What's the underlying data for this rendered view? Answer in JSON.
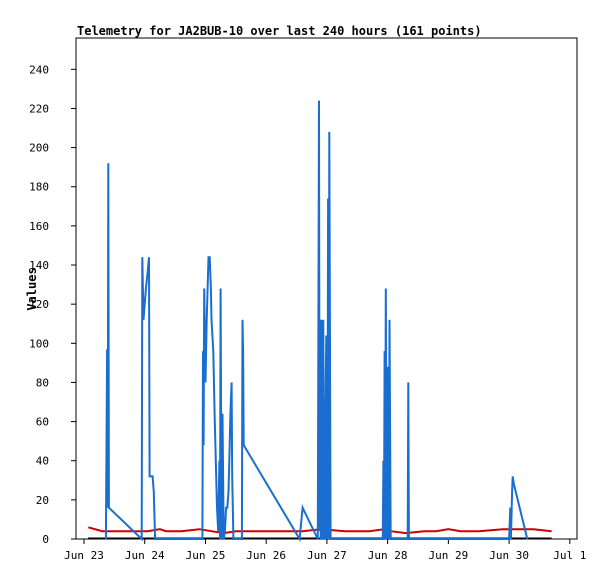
{
  "chart_data": {
    "type": "line",
    "title": "Telemetry for JA2BUB-10 over last 240 hours (161 points)",
    "ylabel": "Values",
    "xlabel": "",
    "ylim": [
      0,
      256
    ],
    "xlim": [
      0,
      8.25
    ],
    "x_unit": "days since Jun 23 00:00",
    "yticks": [
      0,
      20,
      40,
      60,
      80,
      100,
      120,
      140,
      160,
      180,
      200,
      220,
      240
    ],
    "xticks": [
      {
        "x": 0,
        "label": "Jun 23"
      },
      {
        "x": 1,
        "label": "Jun 24"
      },
      {
        "x": 2,
        "label": "Jun 25"
      },
      {
        "x": 3,
        "label": "Jun 26"
      },
      {
        "x": 4,
        "label": "Jun 27"
      },
      {
        "x": 5,
        "label": "Jun 28"
      },
      {
        "x": 6,
        "label": "Jun 29"
      },
      {
        "x": 7,
        "label": "Jun 30"
      },
      {
        "x": 8,
        "label": "Jul 1"
      }
    ],
    "series": [
      {
        "name": "",
        "color": "#cc0000",
        "points": [
          [
            0.07,
            6
          ],
          [
            0.3,
            4
          ],
          [
            0.6,
            4
          ],
          [
            1.05,
            4
          ],
          [
            1.25,
            5
          ],
          [
            1.35,
            4
          ],
          [
            1.6,
            4
          ],
          [
            1.9,
            5
          ],
          [
            2.1,
            4
          ],
          [
            2.3,
            3
          ],
          [
            2.5,
            4
          ],
          [
            3.0,
            4
          ],
          [
            3.6,
            4
          ],
          [
            3.9,
            5
          ],
          [
            4.3,
            4
          ],
          [
            4.7,
            4
          ],
          [
            4.95,
            5
          ],
          [
            5.05,
            4
          ],
          [
            5.3,
            3
          ],
          [
            5.6,
            4
          ],
          [
            5.8,
            4
          ],
          [
            6.0,
            5
          ],
          [
            6.2,
            4
          ],
          [
            6.5,
            4
          ],
          [
            6.9,
            5
          ],
          [
            7.2,
            5
          ],
          [
            7.4,
            5
          ],
          [
            7.7,
            4
          ]
        ]
      },
      {
        "name": "",
        "color": "#1a6ecf",
        "points": [
          [
            0.36,
            0
          ],
          [
            0.38,
            97
          ],
          [
            0.39,
            16
          ],
          [
            0.4,
            192
          ],
          [
            0.41,
            16
          ],
          [
            0.95,
            0
          ],
          [
            0.96,
            144
          ],
          [
            0.98,
            112
          ],
          [
            1.02,
            128
          ],
          [
            1.05,
            137
          ],
          [
            1.07,
            144
          ],
          [
            1.08,
            32
          ],
          [
            1.13,
            32
          ],
          [
            1.15,
            24
          ],
          [
            1.17,
            0
          ],
          [
            1.95,
            0
          ],
          [
            1.96,
            96
          ],
          [
            1.97,
            48
          ],
          [
            1.98,
            128
          ],
          [
            2.0,
            80
          ],
          [
            2.02,
            112
          ],
          [
            2.05,
            144
          ],
          [
            2.07,
            144
          ],
          [
            2.09,
            128
          ],
          [
            2.1,
            112
          ],
          [
            2.13,
            96
          ],
          [
            2.15,
            64
          ],
          [
            2.17,
            40
          ],
          [
            2.19,
            16
          ],
          [
            2.21,
            4
          ],
          [
            2.23,
            40
          ],
          [
            2.24,
            0
          ],
          [
            2.25,
            128
          ],
          [
            2.26,
            48
          ],
          [
            2.27,
            0
          ],
          [
            2.28,
            64
          ],
          [
            2.3,
            0
          ],
          [
            2.32,
            4
          ],
          [
            2.34,
            16
          ],
          [
            2.36,
            16
          ],
          [
            2.38,
            24
          ],
          [
            2.4,
            48
          ],
          [
            2.41,
            64
          ],
          [
            2.43,
            80
          ],
          [
            2.44,
            32
          ],
          [
            2.46,
            0
          ],
          [
            2.6,
            0
          ],
          [
            2.61,
            112
          ],
          [
            2.62,
            96
          ],
          [
            2.63,
            48
          ],
          [
            3.55,
            0
          ],
          [
            3.6,
            16
          ],
          [
            3.85,
            0
          ],
          [
            3.87,
            224
          ],
          [
            3.88,
            4
          ],
          [
            3.89,
            112
          ],
          [
            3.9,
            0
          ],
          [
            3.91,
            96
          ],
          [
            3.92,
            112
          ],
          [
            3.93,
            0
          ],
          [
            3.94,
            112
          ],
          [
            3.95,
            0
          ],
          [
            3.96,
            72
          ],
          [
            3.97,
            0
          ],
          [
            3.98,
            80
          ],
          [
            3.99,
            104
          ],
          [
            4.0,
            0
          ],
          [
            4.01,
            32
          ],
          [
            4.02,
            174
          ],
          [
            4.03,
            0
          ],
          [
            4.04,
            208
          ],
          [
            4.05,
            112
          ],
          [
            4.06,
            0
          ],
          [
            4.92,
            0
          ],
          [
            4.93,
            40
          ],
          [
            4.94,
            0
          ],
          [
            4.95,
            96
          ],
          [
            4.96,
            0
          ],
          [
            4.97,
            128
          ],
          [
            4.98,
            48
          ],
          [
            4.99,
            0
          ],
          [
            5.0,
            88
          ],
          [
            5.01,
            48
          ],
          [
            5.02,
            0
          ],
          [
            5.03,
            112
          ],
          [
            5.04,
            56
          ],
          [
            5.05,
            0
          ],
          [
            5.33,
            0
          ],
          [
            5.34,
            80
          ],
          [
            5.35,
            0
          ],
          [
            7.0,
            0
          ],
          [
            7.02,
            16
          ],
          [
            7.03,
            0
          ],
          [
            7.05,
            24
          ],
          [
            7.06,
            32
          ],
          [
            7.08,
            28
          ],
          [
            7.3,
            0
          ]
        ]
      }
    ],
    "baseline_color": "#000000"
  }
}
